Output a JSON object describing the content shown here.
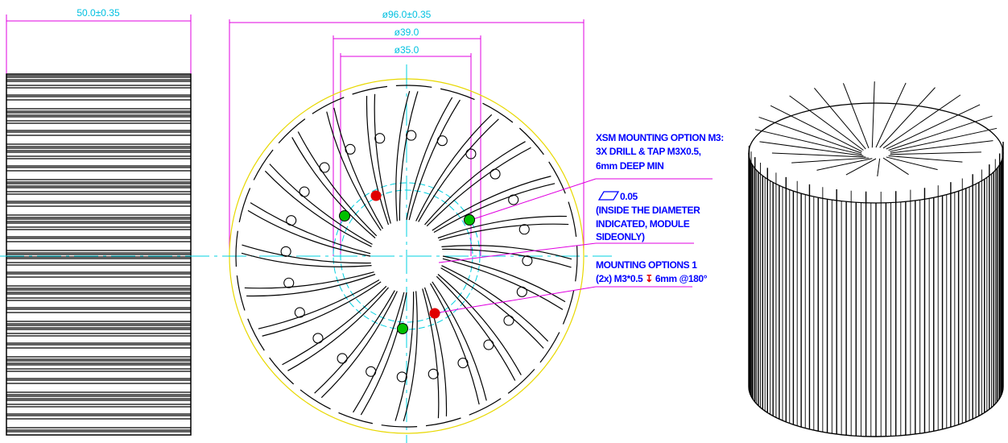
{
  "dimensions": {
    "length": "50.0±0.35",
    "outer_diameter": "ø96.0±0.35",
    "diameter_39": "ø39.0",
    "diameter_35": "ø35.0"
  },
  "annotations": {
    "xsm_mounting": [
      "XSM MOUNTING OPTION M3:",
      "3X DRILL & TAP M3X0.5,",
      "6mm DEEP MIN"
    ],
    "flatness": {
      "tolerance": "0.05",
      "note": [
        "(INSIDE THE DIAMETER",
        "INDICATED, MODULE",
        "SIDEONLY)"
      ]
    },
    "mounting_options": {
      "title": "MOUNTING OPTIONS 1",
      "spec_prefix": "(2x) M3*0.5",
      "depth_symbol": "↧",
      "spec_suffix": "6mm @180°"
    }
  }
}
